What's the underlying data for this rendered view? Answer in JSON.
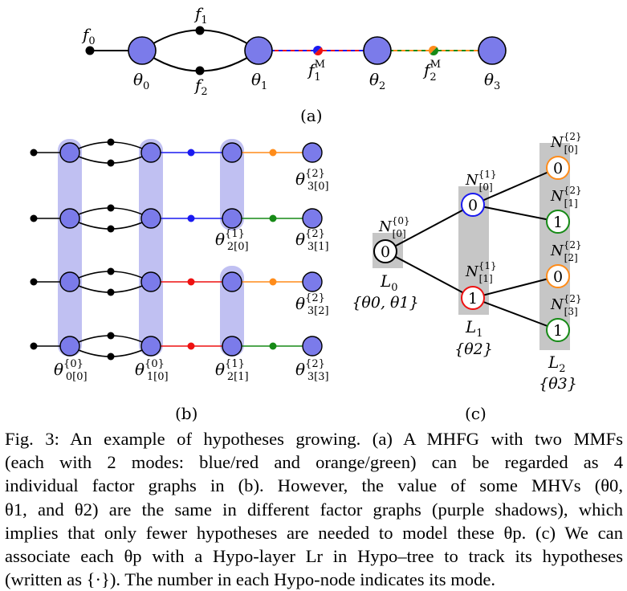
{
  "panel_a": {
    "label": "(a)",
    "nodes": [
      {
        "name": "θ",
        "sub": "0"
      },
      {
        "name": "θ",
        "sub": "1"
      },
      {
        "name": "θ",
        "sub": "2"
      },
      {
        "name": "θ",
        "sub": "3"
      }
    ],
    "factors": [
      {
        "name": "f",
        "sub": "0"
      },
      {
        "name": "f",
        "sub": "1"
      },
      {
        "name": "f",
        "sub": "2"
      },
      {
        "name": "f",
        "sub": "1",
        "sup": "M"
      },
      {
        "name": "f",
        "sub": "2",
        "sup": "M"
      }
    ]
  },
  "panel_b": {
    "label": "(b)",
    "labels": [
      {
        "name": "θ",
        "sup": "{2}",
        "sub": "3[0]"
      },
      {
        "name": "θ",
        "sup": "{1}",
        "sub": "2[0]"
      },
      {
        "name": "θ",
        "sup": "{2}",
        "sub": "3[1]"
      },
      {
        "name": "θ",
        "sup": "{2}",
        "sub": "3[2]"
      },
      {
        "name": "θ",
        "sup": "{0}",
        "sub": "0[0]"
      },
      {
        "name": "θ",
        "sup": "{0}",
        "sub": "1[0]"
      },
      {
        "name": "θ",
        "sup": "{1}",
        "sub": "2[1]"
      },
      {
        "name": "θ",
        "sup": "{2}",
        "sub": "3[3]"
      }
    ]
  },
  "panel_c": {
    "label": "(c)",
    "hypo_nodes": [
      {
        "name": "N",
        "sup": "{0}",
        "sub": "[0]",
        "mode": "0"
      },
      {
        "name": "N",
        "sup": "{1}",
        "sub": "[0]",
        "mode": "0"
      },
      {
        "name": "N",
        "sup": "{1}",
        "sub": "[1]",
        "mode": "1"
      },
      {
        "name": "N",
        "sup": "{2}",
        "sub": "[0]",
        "mode": "0"
      },
      {
        "name": "N",
        "sup": "{2}",
        "sub": "[1]",
        "mode": "1"
      },
      {
        "name": "N",
        "sup": "{2}",
        "sub": "[2]",
        "mode": "0"
      },
      {
        "name": "N",
        "sup": "{2}",
        "sub": "[3]",
        "mode": "1"
      }
    ],
    "layers": [
      {
        "name": "L",
        "sub": "0",
        "set": "{θ0, θ1}"
      },
      {
        "name": "L",
        "sub": "1",
        "set": "{θ2}"
      },
      {
        "name": "L",
        "sub": "2",
        "set": "{θ3}"
      }
    ]
  },
  "caption": {
    "lines": [
      "Fig. 3: An example of hypotheses growing. (a) A MHFG with two MMFs",
      "(each with 2 modes: blue/red and orange/green) can be regarded as 4",
      "individual factor graphs in (b). However, the value of some MHVs (θ0,",
      "θ1, and θ2) are the same in different factor graphs (purple shadows), which",
      "implies that only fewer hypotheses are needed to model these θp. (c) We can",
      "associate each θp with a Hypo-layer Lr in Hypo–tree to track its hypotheses",
      "(written as {·}). The number in each Hypo-node indicates its mode."
    ]
  },
  "colors": {
    "variable_fill": "#7b7bea",
    "shadow": "#c0c0f2",
    "layer_box": "#c6c6c6",
    "mode_blue": "#1a1af0",
    "mode_red": "#ee1111",
    "mode_orange": "#ff8c1a",
    "mode_green": "#168a16"
  }
}
